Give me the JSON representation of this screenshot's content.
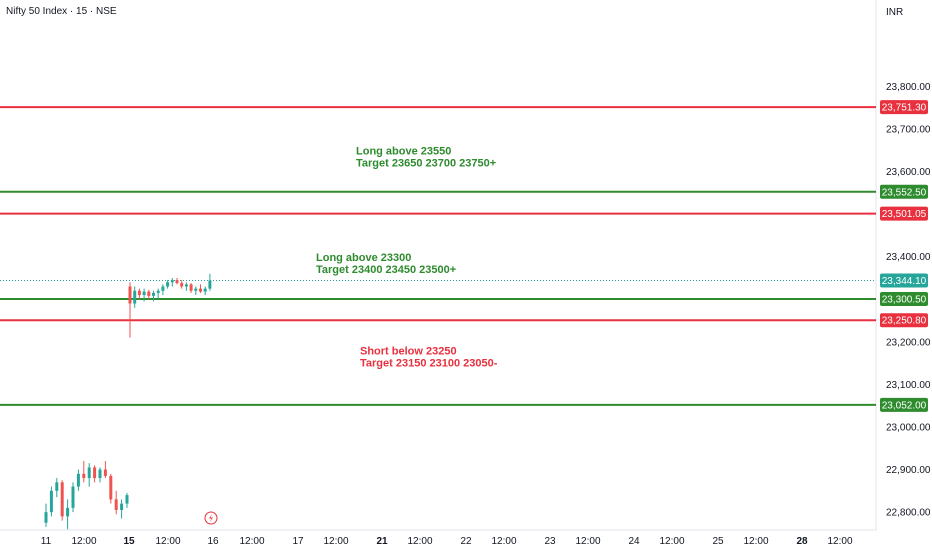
{
  "header": {
    "symbol": "Nifty 50 Index · 15 · NSE",
    "currency": "INR"
  },
  "colors": {
    "green": "#2e8b2e",
    "red": "#e8303e",
    "price_line": "#26a69a",
    "price_label_bg": "#26a69a",
    "axis_text": "#131722"
  },
  "chart_data": {
    "type": "candlestick",
    "y_axis": {
      "ticks": [
        "23,800.00",
        "23,700.00",
        "23,600.00",
        "23,400.00",
        "23,200.00",
        "23,100.00",
        "23,000.00",
        "22,900.00",
        "22,800.00"
      ],
      "tick_values": [
        23800,
        23700,
        23600,
        23400,
        23200,
        23100,
        23000,
        22900,
        22800
      ],
      "range": [
        22758,
        24003
      ]
    },
    "x_axis": {
      "labels": [
        "11",
        "12:00",
        "15",
        "12:00",
        "16",
        "12:00",
        "17",
        "12:00",
        "21",
        "12:00",
        "22",
        "12:00",
        "23",
        "12:00",
        "24",
        "12:00",
        "25",
        "12:00",
        "28",
        "12:00"
      ],
      "bold": [
        "15",
        "21",
        "28"
      ]
    },
    "levels": [
      {
        "value": 23751.3,
        "label": "23,751.30",
        "color": "red"
      },
      {
        "value": 23552.5,
        "label": "23,552.50",
        "color": "green"
      },
      {
        "value": 23501.05,
        "label": "23,501.05",
        "color": "red"
      },
      {
        "value": 23300.5,
        "label": "23,300.50",
        "color": "green"
      },
      {
        "value": 23250.8,
        "label": "23,250.80",
        "color": "red"
      },
      {
        "value": 23052.0,
        "label": "23,052.00",
        "color": "green"
      }
    ],
    "current_price": {
      "value": 23344.1,
      "label": "23,344.10"
    },
    "annotations": [
      {
        "lines": [
          "Long above 23550",
          "Target 23650 23700 23750+"
        ],
        "color": "green",
        "anchor_price": 23640,
        "arrow": {
          "from": [
            23525,
            23572
          ],
          "to": [
            23700,
            23635
          ]
        }
      },
      {
        "lines": [
          "Long above 23300",
          "Target 23400 23450 23500+"
        ],
        "color": "green",
        "anchor_price": 23390,
        "arrow": {
          "from": [
            23340,
            23380
          ],
          "to": [
            23470,
            23305
          ]
        }
      },
      {
        "lines": [
          "Short below 23250",
          "Target 23150 23100 23050-"
        ],
        "color": "red",
        "anchor_price": 23170,
        "arrow": {
          "from": [
            23230,
            23365
          ],
          "to": [
            23075,
            23480
          ]
        }
      }
    ],
    "candles_day11": [
      [
        22775,
        22820,
        22765,
        22800
      ],
      [
        22800,
        22860,
        22790,
        22850
      ],
      [
        22850,
        22880,
        22835,
        22870
      ],
      [
        22870,
        22875,
        22780,
        22790
      ],
      [
        22790,
        22830,
        22760,
        22810
      ],
      [
        22810,
        22870,
        22800,
        22860
      ],
      [
        22860,
        22900,
        22850,
        22890
      ],
      [
        22890,
        22920,
        22870,
        22880
      ],
      [
        22880,
        22915,
        22860,
        22905
      ],
      [
        22905,
        22910,
        22870,
        22880
      ],
      [
        22880,
        22905,
        22870,
        22900
      ],
      [
        22900,
        22920,
        22880,
        22885
      ],
      [
        22885,
        22890,
        22820,
        22830
      ],
      [
        22830,
        22850,
        22795,
        22805
      ],
      [
        22805,
        22830,
        22785,
        22820
      ],
      [
        22820,
        22845,
        22810,
        22840
      ]
    ],
    "candles_day15": [
      [
        23330,
        23340,
        23210,
        23290
      ],
      [
        23290,
        23330,
        23280,
        23320
      ],
      [
        23320,
        23325,
        23300,
        23310
      ],
      [
        23310,
        23325,
        23295,
        23318
      ],
      [
        23318,
        23322,
        23300,
        23308
      ],
      [
        23308,
        23320,
        23295,
        23315
      ],
      [
        23315,
        23325,
        23300,
        23320
      ],
      [
        23320,
        23335,
        23310,
        23330
      ],
      [
        23330,
        23345,
        23325,
        23340
      ],
      [
        23340,
        23350,
        23330,
        23345
      ],
      [
        23345,
        23350,
        23335,
        23338
      ],
      [
        23338,
        23345,
        23325,
        23330
      ],
      [
        23330,
        23340,
        23320,
        23335
      ],
      [
        23335,
        23338,
        23315,
        23320
      ],
      [
        23320,
        23330,
        23310,
        23325
      ],
      [
        23325,
        23335,
        23315,
        23318
      ],
      [
        23318,
        23330,
        23310,
        23325
      ],
      [
        23325,
        23360,
        23320,
        23344
      ]
    ]
  }
}
